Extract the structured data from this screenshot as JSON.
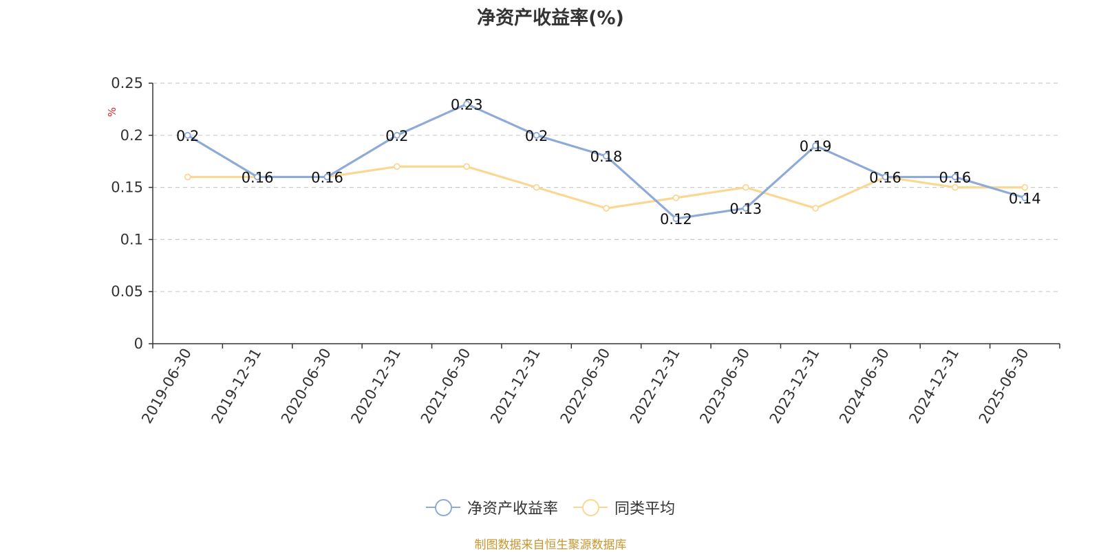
{
  "chart_data": {
    "type": "line",
    "title": "净资产收益率(%)",
    "ylabel": "%",
    "ylim": [
      0,
      0.25
    ],
    "yticks": [
      "0",
      "0.05",
      "0.1",
      "0.15",
      "0.2",
      "0.25"
    ],
    "grid": true,
    "legend_position": "bottom",
    "categories": [
      "2019-06-30",
      "2019-12-31",
      "2020-06-30",
      "2020-12-31",
      "2021-06-30",
      "2021-12-31",
      "2022-06-30",
      "2022-12-31",
      "2023-06-30",
      "2023-12-31",
      "2024-06-30",
      "2024-12-31",
      "2025-06-30"
    ],
    "series": [
      {
        "name": "净资产收益率",
        "color": "#8eaad7",
        "values": [
          0.2,
          0.16,
          0.16,
          0.2,
          0.23,
          0.2,
          0.18,
          0.12,
          0.13,
          0.19,
          0.16,
          0.16,
          0.14
        ],
        "labels": [
          "0.2",
          "0.16",
          "0.16",
          "0.2",
          "0.23",
          "0.2",
          "0.18",
          "0.12",
          "0.13",
          "0.19",
          "0.16",
          "0.16",
          "0.14"
        ]
      },
      {
        "name": "同类平均",
        "color": "#fbd794",
        "values": [
          0.16,
          0.16,
          0.16,
          0.17,
          0.17,
          0.15,
          0.13,
          0.14,
          0.15,
          0.13,
          0.16,
          0.15,
          0.15
        ]
      }
    ]
  },
  "source_note": "制图数据来自恒生聚源数据库",
  "colors": {
    "axis": "#333333",
    "grid": "#cccccc",
    "ylabel": "#e02020",
    "source": "#c8962e"
  }
}
